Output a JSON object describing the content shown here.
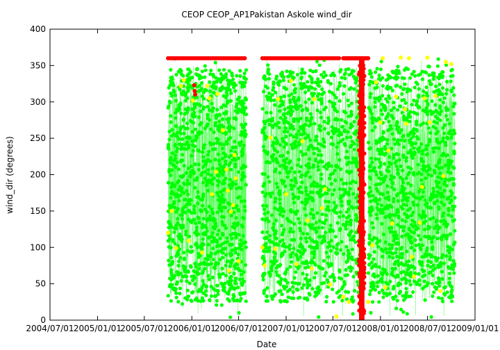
{
  "chart_data": {
    "type": "scatter",
    "title": "CEOP CEOP_AP1Pakistan Askole  wind_dir",
    "xlabel": "Date",
    "ylabel": "wind_dir (degrees)",
    "xlim": [
      "2004-07-01",
      "2009-01-01"
    ],
    "ylim": [
      0,
      400
    ],
    "x_tick_labels": [
      "2004/07/01",
      "2005/01/01",
      "2005/07/01",
      "2006/01/01",
      "2006/07/01",
      "2007/01/01",
      "2007/07/01",
      "2008/01/01",
      "2008/07/01",
      "2009/01/01"
    ],
    "y_tick_labels": [
      "0",
      "50",
      "100",
      "150",
      "200",
      "250",
      "300",
      "350",
      "400"
    ],
    "grid": false,
    "legend": "none",
    "observation_periods": [
      {
        "start": "2005-10-01",
        "end": "2006-07-31"
      },
      {
        "start": "2006-10-01",
        "end": "2007-10-10"
      },
      {
        "start": "2007-11-15",
        "end": "2008-10-15"
      }
    ],
    "series": [
      {
        "color": "#00ff00",
        "description_of_values": "dense scatter of wind direction observations spanning 0 to 360 degrees, mostly 50 to 350",
        "value_range": [
          0,
          360
        ]
      },
      {
        "color": "#ffff00",
        "points": [
          {
            "x": "2005-10-01",
            "y": 120
          },
          {
            "x": "2005-10-15",
            "y": 150
          },
          {
            "x": "2005-11-01",
            "y": 99
          },
          {
            "x": "2005-11-20",
            "y": 322
          },
          {
            "x": "2005-12-01",
            "y": 330
          },
          {
            "x": "2005-12-20",
            "y": 109
          },
          {
            "x": "2006-01-05",
            "y": 302
          },
          {
            "x": "2006-02-10",
            "y": 93
          },
          {
            "x": "2006-03-01",
            "y": 322
          },
          {
            "x": "2006-03-10",
            "y": 305
          },
          {
            "x": "2006-03-20",
            "y": 173
          },
          {
            "x": "2006-04-05",
            "y": 204
          },
          {
            "x": "2006-04-10",
            "y": 311
          },
          {
            "x": "2006-05-01",
            "y": 261
          },
          {
            "x": "2006-05-15",
            "y": 207
          },
          {
            "x": "2006-05-20",
            "y": 178
          },
          {
            "x": "2006-05-25",
            "y": 68
          },
          {
            "x": "2006-06-01",
            "y": 149
          },
          {
            "x": "2006-06-10",
            "y": 158
          },
          {
            "x": "2006-06-15",
            "y": 227
          },
          {
            "x": "2006-06-20",
            "y": 195
          },
          {
            "x": "2006-07-01",
            "y": 81
          },
          {
            "x": "2006-10-01",
            "y": 100
          },
          {
            "x": "2006-10-10",
            "y": 75
          },
          {
            "x": "2006-11-01",
            "y": 251
          },
          {
            "x": "2006-11-20",
            "y": 98
          },
          {
            "x": "2006-12-01",
            "y": 304
          },
          {
            "x": "2007-01-01",
            "y": 173
          },
          {
            "x": "2007-01-20",
            "y": 329
          },
          {
            "x": "2007-02-10",
            "y": 77
          },
          {
            "x": "2007-03-05",
            "y": 246
          },
          {
            "x": "2007-03-25",
            "y": 137
          },
          {
            "x": "2007-04-10",
            "y": 71
          },
          {
            "x": "2007-04-20",
            "y": 304
          },
          {
            "x": "2007-05-20",
            "y": 154
          },
          {
            "x": "2007-06-01",
            "y": 180
          },
          {
            "x": "2007-06-20",
            "y": 49
          },
          {
            "x": "2007-07-15",
            "y": 5
          },
          {
            "x": "2007-08-10",
            "y": 32
          },
          {
            "x": "2007-09-01",
            "y": 25
          },
          {
            "x": "2007-11-15",
            "y": 25
          },
          {
            "x": "2007-12-01",
            "y": 103
          },
          {
            "x": "2007-12-15",
            "y": 327
          },
          {
            "x": "2008-01-01",
            "y": 272
          },
          {
            "x": "2008-01-10",
            "y": 360
          },
          {
            "x": "2008-01-20",
            "y": 45
          },
          {
            "x": "2008-02-01",
            "y": 233
          },
          {
            "x": "2008-02-15",
            "y": 133
          },
          {
            "x": "2008-03-01",
            "y": 307
          },
          {
            "x": "2008-03-20",
            "y": 361
          },
          {
            "x": "2008-04-05",
            "y": 290
          },
          {
            "x": "2008-04-10",
            "y": 270
          },
          {
            "x": "2008-04-20",
            "y": 360
          },
          {
            "x": "2008-05-01",
            "y": 87
          },
          {
            "x": "2008-05-10",
            "y": 60
          },
          {
            "x": "2008-06-01",
            "y": 134
          },
          {
            "x": "2008-06-10",
            "y": 183
          },
          {
            "x": "2008-06-20",
            "y": 305
          },
          {
            "x": "2008-07-01",
            "y": 361
          },
          {
            "x": "2008-07-10",
            "y": 272
          },
          {
            "x": "2008-08-01",
            "y": 308
          },
          {
            "x": "2008-08-20",
            "y": 40
          },
          {
            "x": "2008-09-01",
            "y": 198
          },
          {
            "x": "2008-09-10",
            "y": 355
          },
          {
            "x": "2008-10-01",
            "y": 352
          }
        ]
      },
      {
        "color": "#ff0000",
        "points": [
          {
            "x": "2006-01-10",
            "y": 323
          },
          {
            "x": "2006-01-12",
            "y": 315
          },
          {
            "x": "2006-01-14",
            "y": 310
          }
        ],
        "top_band": {
          "y": 360,
          "x_ranges": [
            [
              "2005-10-01",
              "2006-07-25"
            ],
            [
              "2006-10-01",
              "2007-07-25"
            ],
            [
              "2007-08-10",
              "2007-11-15"
            ]
          ]
        },
        "vertical_band": {
          "x_range": [
            "2007-10-10",
            "2007-10-31"
          ],
          "y_range": [
            0,
            360
          ]
        }
      }
    ]
  }
}
